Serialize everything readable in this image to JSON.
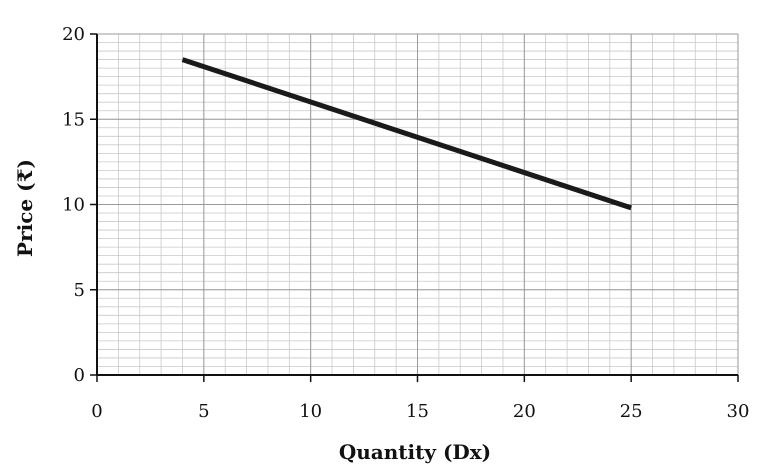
{
  "chart_data": {
    "type": "line",
    "title": "",
    "xlabel": "Quantity (Dx)",
    "ylabel": "Price (₹)",
    "xlim": [
      0,
      30
    ],
    "ylim": [
      0,
      20
    ],
    "x_ticks": [
      0,
      5,
      10,
      15,
      20,
      25,
      30
    ],
    "y_ticks": [
      0,
      5,
      10,
      15,
      20
    ],
    "x_tick_labels": [
      "0",
      "5",
      "10",
      "15",
      "20",
      "25",
      "30"
    ],
    "y_tick_labels": [
      "0",
      "5",
      "10",
      "15",
      "20"
    ],
    "grid": true,
    "series": [
      {
        "x": [
          4,
          25
        ],
        "y": [
          18.5,
          9.8
        ],
        "color": "#1a1a1a"
      }
    ]
  }
}
